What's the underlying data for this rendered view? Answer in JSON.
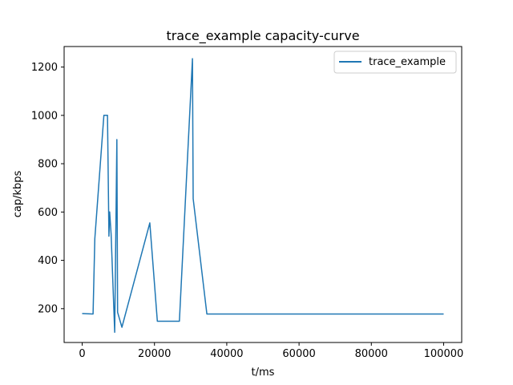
{
  "chart_data": {
    "type": "line",
    "title": "trace_example capacity-curve",
    "xlabel": "t/ms",
    "ylabel": "cap/kbps",
    "xlim": [
      -5000,
      105000
    ],
    "ylim": [
      60,
      1285
    ],
    "xticks": [
      0,
      20000,
      40000,
      60000,
      80000,
      100000
    ],
    "yticks": [
      200,
      400,
      600,
      800,
      1000,
      1200
    ],
    "grid": false,
    "legend_position": "upper right",
    "series": [
      {
        "name": "trace_example",
        "color": "#1f77b4",
        "x": [
          0,
          3000,
          3500,
          6000,
          7000,
          7400,
          7600,
          8000,
          9000,
          9600,
          9800,
          11000,
          18700,
          20800,
          26900,
          30500,
          30700,
          34500,
          100000
        ],
        "y": [
          180,
          178,
          490,
          1000,
          1000,
          500,
          600,
          510,
          102,
          900,
          185,
          123,
          555,
          148,
          148,
          1235,
          655,
          178,
          178
        ]
      }
    ]
  }
}
